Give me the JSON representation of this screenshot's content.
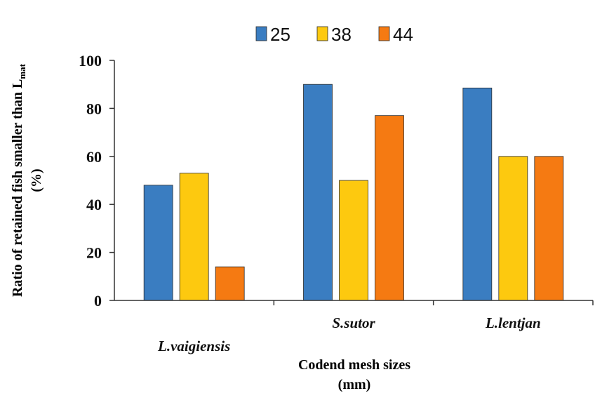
{
  "chart_data": {
    "type": "bar",
    "categories": [
      "L.vaigiensis",
      "S.sutor",
      "L.lentjan"
    ],
    "series": [
      {
        "name": "25",
        "values": [
          48,
          90,
          88.5
        ],
        "color": "#3a7dc1"
      },
      {
        "name": "38",
        "values": [
          53,
          50,
          60
        ],
        "color": "#fdc90f"
      },
      {
        "name": "44",
        "values": [
          14,
          77,
          60
        ],
        "color": "#f57a12"
      }
    ],
    "xlabel_line1": "Codend mesh sizes",
    "xlabel_line2": "(mm)",
    "ylabel_line1_main": "Ratio of retained fish smaller than L",
    "ylabel_line1_sub": "mat",
    "ylabel_line2": "(%)",
    "ylim": [
      0,
      100
    ],
    "yticks": [
      "0",
      "20",
      "40",
      "60",
      "80",
      "100"
    ],
    "legend_position": "top-center",
    "grid": false
  }
}
